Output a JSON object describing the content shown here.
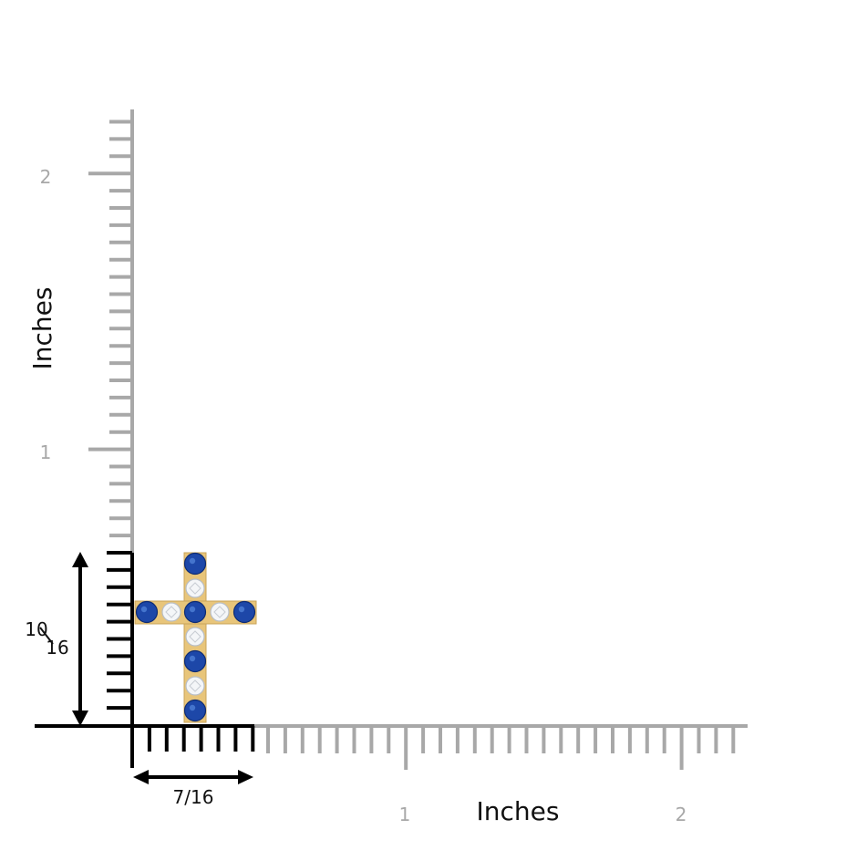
{
  "y_axis": {
    "title": "Inches",
    "tick_labels": [
      "1",
      "2"
    ]
  },
  "x_axis": {
    "title": "Inches",
    "tick_labels": [
      "1",
      "2"
    ]
  },
  "dimensions": {
    "height": {
      "numerator": "10",
      "denominator": "16"
    },
    "width": "7/16"
  },
  "pendant": {
    "metal_color": "#e8c57a",
    "sapphire_color": "#1d47a8",
    "diamond_color": "#f4f6f8",
    "column_stones": [
      "sapphire",
      "diamond",
      "sapphire",
      "diamond",
      "sapphire",
      "diamond",
      "sapphire"
    ],
    "arm_stones": [
      "sapphire",
      "diamond",
      "center",
      "diamond",
      "sapphire"
    ]
  }
}
